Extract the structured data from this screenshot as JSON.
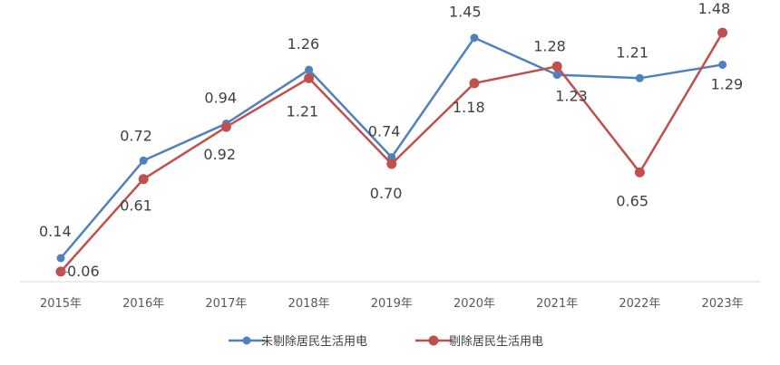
{
  "chart_data": {
    "type": "line",
    "title": "",
    "xlabel": "",
    "ylabel": "",
    "categories": [
      "2015年",
      "2016年",
      "2017年",
      "2018年",
      "2019年",
      "2020年",
      "2021年",
      "2022年",
      "2023年"
    ],
    "ylim": [
      0,
      1.6
    ],
    "grid": false,
    "legend_position": "bottom",
    "series": [
      {
        "name": "未剔除居民生活用电",
        "color": "#4F81BD",
        "values": [
          0.14,
          0.72,
          0.94,
          1.26,
          0.74,
          1.45,
          1.23,
          1.21,
          1.29
        ],
        "labels": [
          "0.14",
          "0.72",
          "0.94",
          "1.26",
          "0.74",
          "1.45",
          "1.23",
          "1.21",
          "1.29"
        ]
      },
      {
        "name": "剔除居民生活用电",
        "color": "#C0504D",
        "values": [
          0.06,
          0.61,
          0.92,
          1.21,
          0.7,
          1.18,
          1.28,
          0.65,
          1.48
        ],
        "labels": [
          "0.06",
          "0.61",
          "0.92",
          "1.21",
          "0.70",
          "1.18",
          "1.28",
          "0.65",
          "1.48"
        ]
      }
    ]
  }
}
